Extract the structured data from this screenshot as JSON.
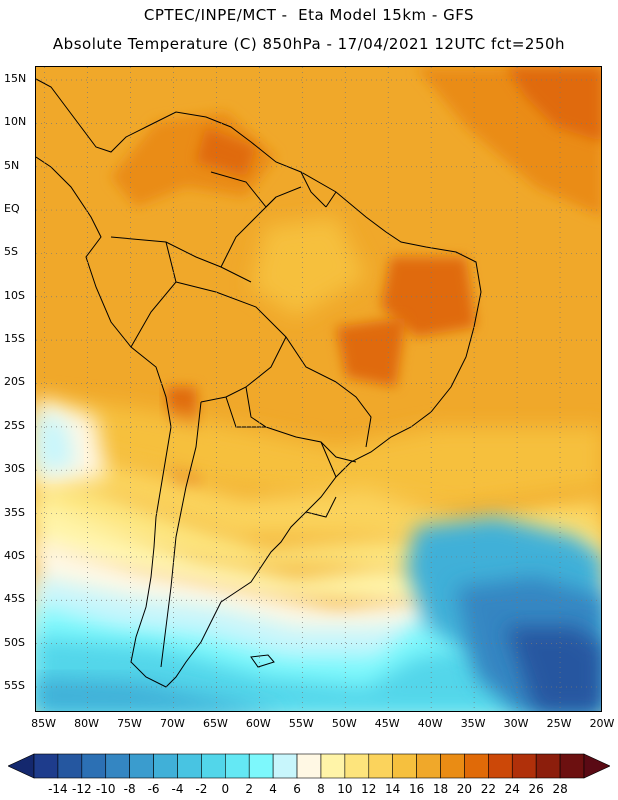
{
  "header": {
    "line1": "CPTEC/INPE/MCT -  Eta Model 15km - GFS",
    "line2": "Absolute Temperature (C) 850hPa - 17/04/2021 12UTC fct=250h"
  },
  "axes": {
    "lat_labels": [
      "15N",
      "10N",
      "5N",
      "EQ",
      "5S",
      "10S",
      "15S",
      "20S",
      "25S",
      "30S",
      "35S",
      "40S",
      "45S",
      "50S",
      "55S"
    ],
    "lat_values": [
      15,
      10,
      5,
      0,
      -5,
      -10,
      -15,
      -20,
      -25,
      -30,
      -35,
      -40,
      -45,
      -50,
      -55
    ],
    "lon_labels": [
      "85W",
      "80W",
      "75W",
      "70W",
      "65W",
      "60W",
      "55W",
      "50W",
      "45W",
      "40W",
      "35W",
      "30W",
      "25W",
      "20W"
    ],
    "lon_values": [
      -85,
      -80,
      -75,
      -70,
      -65,
      -60,
      -55,
      -50,
      -45,
      -40,
      -35,
      -30,
      -25,
      -20
    ],
    "lat_range": [
      -58,
      16.5
    ],
    "lon_range": [
      -86,
      -20
    ]
  },
  "colorbar": {
    "labels": [
      "-14",
      "-12",
      "-10",
      "-8",
      "-6",
      "-4",
      "-2",
      "0",
      "2",
      "4",
      "6",
      "8",
      "10",
      "12",
      "14",
      "16",
      "18",
      "20",
      "22",
      "24",
      "26",
      "28"
    ],
    "colors": [
      "#1e3c8c",
      "#2557a0",
      "#2c70b4",
      "#3486c2",
      "#3a9cce",
      "#40b0d8",
      "#48c4e2",
      "#52d6ea",
      "#64e8f4",
      "#7df8fc",
      "#c8f6fc",
      "#fff8e4",
      "#fff4a8",
      "#fde47c",
      "#fbd35c",
      "#f6c03e",
      "#f0a82a",
      "#ea8c14",
      "#e06a08",
      "#cc4808",
      "#b0300a",
      "#8c1e0c",
      "#6c1010"
    ],
    "under_color": "#14286e",
    "over_color": "#5a0a14"
  }
}
